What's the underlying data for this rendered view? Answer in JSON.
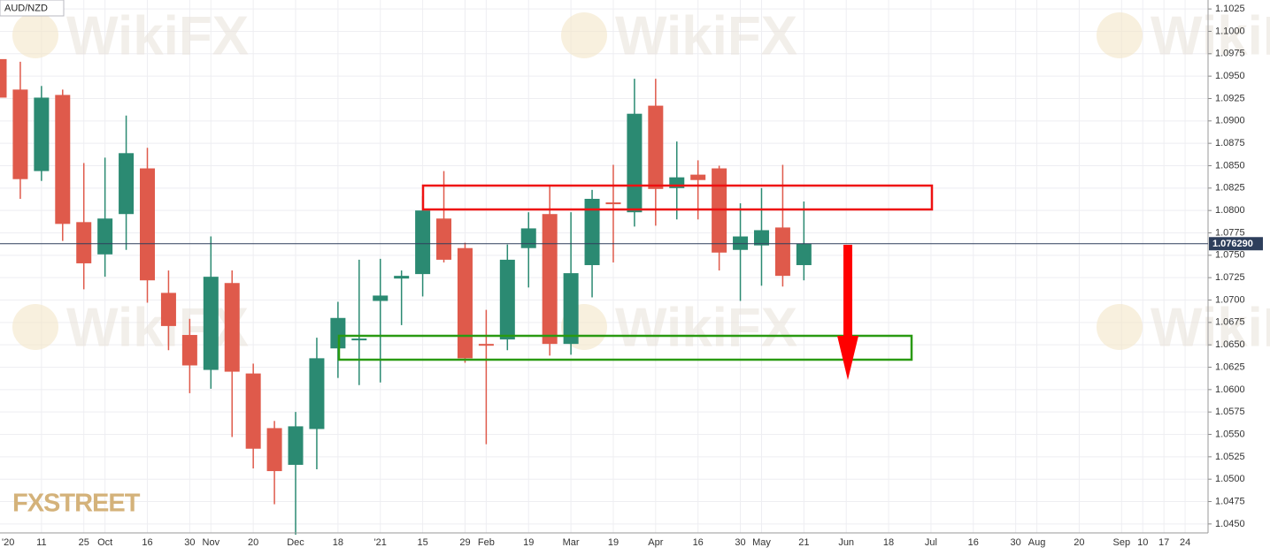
{
  "chart_data": {
    "type": "candlestick",
    "title": "AUD/NZD",
    "watermark": "WikiFX",
    "logo": "FXSTREET",
    "categories": [
      "'20",
      null,
      "11",
      null,
      "25",
      "Oct",
      null,
      "16",
      null,
      "30",
      "Nov",
      null,
      "20",
      null,
      "Dec",
      null,
      "18",
      null,
      "'21",
      null,
      "15",
      null,
      "29",
      "Feb",
      null,
      "19",
      null,
      "Mar",
      null,
      "19",
      null,
      "Apr",
      null,
      "16",
      null,
      "30",
      "May",
      null,
      "21",
      null,
      "Jun",
      null,
      "18",
      null,
      "Jul",
      null,
      "16",
      null,
      "30",
      "Aug",
      null,
      "20",
      null,
      "Sep",
      "10",
      "17",
      "24"
    ],
    "open": [
      1.0969,
      1.0935,
      1.0844,
      1.0929,
      1.0787,
      1.0751,
      1.0796,
      1.0847,
      1.0708,
      1.0661,
      1.0622,
      1.0719,
      1.0618,
      1.0557,
      1.0516,
      1.0556,
      1.0646,
      1.0655,
      1.0699,
      1.0724,
      1.0729,
      1.0791,
      1.0758,
      1.0651,
      1.0656,
      1.0758,
      1.0796,
      1.0651,
      1.0739,
      1.0809,
      1.0798,
      1.0917,
      1.0825,
      1.084,
      1.0847,
      1.0756,
      1.0761,
      1.0781,
      1.0739,
      null,
      null,
      null,
      null,
      null,
      null,
      null,
      null,
      null,
      null,
      null,
      null,
      null,
      null,
      null,
      null,
      null,
      null
    ],
    "high": [
      1.1,
      1.0966,
      1.0939,
      1.0935,
      1.0853,
      1.0859,
      1.0906,
      1.087,
      1.0733,
      1.0679,
      1.0771,
      1.0733,
      1.0629,
      1.0565,
      1.0575,
      1.0658,
      1.0698,
      1.0745,
      1.0746,
      1.0733,
      1.0816,
      1.0844,
      1.0764,
      1.0689,
      1.0762,
      1.0798,
      1.0828,
      1.0798,
      1.0823,
      1.0851,
      1.0947,
      1.0947,
      1.0877,
      1.0856,
      1.085,
      1.0808,
      1.0825,
      1.0851,
      1.081,
      null,
      null,
      null,
      null,
      null,
      null,
      null,
      null,
      null,
      null,
      null,
      null,
      null,
      null,
      null,
      null,
      null,
      null
    ],
    "low": [
      1.09,
      1.0813,
      1.0833,
      1.0766,
      1.0712,
      1.0726,
      1.0756,
      1.0697,
      1.0644,
      1.0596,
      1.0601,
      1.0547,
      1.0512,
      1.0472,
      1.0438,
      1.0511,
      1.0613,
      1.0605,
      1.0608,
      1.0672,
      1.0704,
      1.0742,
      1.063,
      1.0539,
      1.0644,
      1.0714,
      1.0638,
      1.0639,
      1.0703,
      1.0742,
      1.0782,
      1.0783,
      1.079,
      1.079,
      1.0733,
      1.0699,
      1.0716,
      1.0715,
      1.0722,
      null,
      null,
      null,
      null,
      null,
      null,
      null,
      null,
      null,
      null,
      null,
      null,
      null,
      null,
      null,
      null,
      null,
      null
    ],
    "close": [
      1.0926,
      1.0835,
      1.0926,
      1.0785,
      1.0741,
      1.0791,
      1.0864,
      1.0722,
      1.0671,
      1.0627,
      1.0726,
      1.062,
      1.0534,
      1.0509,
      1.0559,
      1.0635,
      1.068,
      1.0657,
      1.0705,
      1.0727,
      1.08,
      1.0745,
      1.0635,
      1.0649,
      1.0745,
      1.078,
      1.0651,
      1.073,
      1.0813,
      1.0807,
      1.0908,
      1.0824,
      1.0837,
      1.0834,
      1.0753,
      1.0771,
      1.0778,
      1.0727,
      1.0763,
      null,
      null,
      null,
      null,
      null,
      null,
      null,
      null,
      null,
      null,
      null,
      null,
      null,
      null,
      null,
      null,
      null,
      null
    ],
    "up_color": "#2b8a72",
    "down_color": "#df5a4b",
    "last_price": 1.07629,
    "last_price_label": "1.076290",
    "last_price_color": "#2e3f5c",
    "ylim": [
      1.044,
      1.1035
    ],
    "yticks": [
      1.1025,
      {
        "value": 1.1,
        "label": "1.1000"
      },
      1.0975,
      {
        "value": 1.095,
        "label": "1.0950"
      },
      1.0925,
      {
        "value": 1.09,
        "label": "1.0900"
      },
      1.0875,
      {
        "value": 1.085,
        "label": "1.0850"
      },
      1.0825,
      {
        "value": 1.08,
        "label": "1.0800"
      },
      1.0775,
      {
        "value": 1.075,
        "label": "1.0750"
      },
      1.0725,
      {
        "value": 1.07,
        "label": "1.0700"
      },
      1.0675,
      {
        "value": 1.065,
        "label": "1.0650"
      },
      1.0625,
      {
        "value": 1.06,
        "label": "1.0600"
      },
      1.0575,
      {
        "value": 1.055,
        "label": "1.0550"
      },
      1.0525,
      {
        "value": 1.05,
        "label": "1.0500"
      },
      1.0475,
      {
        "value": 1.045,
        "label": "1.0450"
      }
    ],
    "grid": true
  }
}
